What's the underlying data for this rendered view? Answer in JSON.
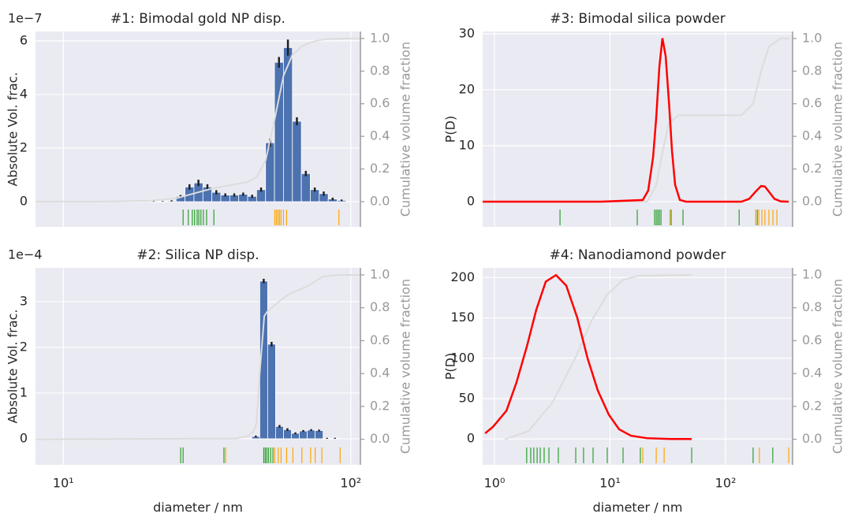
{
  "chart_data": [
    {
      "type": "histogram",
      "title": "#1: Bimodal gold NP disp.",
      "ylabel": "Absolute Vol. frac.",
      "y2label": "Cumulative volume fraction",
      "offset_text": "1e−7",
      "log_x": true,
      "xlim": [
        8,
        108
      ],
      "xticks": [
        10,
        100
      ],
      "ylim": [
        -0.94,
        6.35
      ],
      "yticks": [
        0,
        2,
        4,
        6
      ],
      "y2lim": [
        -0.155,
        1.043
      ],
      "y2ticks": [
        {
          "value": 0,
          "label": "0.0"
        },
        {
          "value": 0.2,
          "label": "0.2"
        },
        {
          "value": 0.4,
          "label": "0.4"
        },
        {
          "value": 0.6,
          "label": "0.6"
        },
        {
          "value": 0.8,
          "label": "0.8"
        },
        {
          "value": 1,
          "label": "1.0"
        }
      ],
      "grid": true,
      "color": "#4c72b0",
      "bins": [
        12.94,
        13.9,
        14.94,
        16.05,
        17.24,
        18.52,
        19.9,
        21.38,
        22.96,
        24.67,
        26.5,
        28.47,
        30.59,
        32.86,
        35.3,
        37.93,
        40.75,
        43.77,
        47.02,
        50.52,
        54.27,
        58.3,
        62.64,
        67.3,
        72.29,
        77.67,
        83.44,
        89.63,
        96.31
      ],
      "values": [
        0.01,
        0.02,
        0.01,
        0.01,
        0.02,
        0.01,
        0.01,
        0.02,
        0.03,
        0.2,
        0.55,
        0.7,
        0.55,
        0.35,
        0.25,
        0.25,
        0.28,
        0.2,
        0.45,
        2.2,
        5.2,
        5.75,
        3.0,
        1.05,
        0.45,
        0.3,
        0.1,
        0.05
      ],
      "errors": [
        0.01,
        0.01,
        0.01,
        0.01,
        0.01,
        0.01,
        0.01,
        0.01,
        0.02,
        0.05,
        0.1,
        0.12,
        0.1,
        0.08,
        0.06,
        0.06,
        0.06,
        0.06,
        0.08,
        0.15,
        0.2,
        0.3,
        0.15,
        0.1,
        0.08,
        0.08,
        0.05,
        0.03
      ],
      "series": [
        {
          "color": "#dcdcdc",
          "axis": "y2",
          "x": [
            8,
            12.94,
            19.9,
            24.67,
            28.47,
            32.86,
            37.93,
            43.77,
            47.02,
            50.52,
            54.27,
            58.3,
            62.64,
            67.3,
            72.29,
            77.67,
            83.44,
            96.31,
            108
          ],
          "values": [
            0,
            0,
            0.005,
            0.02,
            0.05,
            0.08,
            0.1,
            0.12,
            0.15,
            0.25,
            0.5,
            0.77,
            0.9,
            0.95,
            0.975,
            0.99,
            0.997,
            1.0,
            1.0
          ]
        }
      ],
      "rug": [
        {
          "color": "#2ca02c",
          "x": [
            26.1,
            27.2,
            28.1,
            28.6,
            29.2,
            29.6,
            30.1,
            30.7,
            31.5,
            33.4
          ]
        },
        {
          "color": "#ffa500",
          "x": [
            54.4,
            55.1,
            55.8,
            56.5,
            57.2,
            58.3,
            59.8,
            90.9
          ]
        }
      ]
    },
    {
      "type": "histogram",
      "title": "#2: Silica NP disp.",
      "ylabel": "Absolute Vol. frac.",
      "y2label": "Cumulative volume fraction",
      "xlabel": "diameter / nm",
      "offset_text": "1e−4",
      "log_x": true,
      "xlim": [
        8,
        108
      ],
      "xticks": [
        {
          "value": 10,
          "label": "10¹"
        },
        {
          "value": 100,
          "label": "10²"
        }
      ],
      "ylim": [
        -0.57,
        3.74
      ],
      "yticks": [
        0,
        1,
        2,
        3
      ],
      "y2lim": [
        -0.155,
        1.043
      ],
      "y2ticks": [
        {
          "value": 0,
          "label": "0.0"
        },
        {
          "value": 0.2,
          "label": "0.2"
        },
        {
          "value": 0.4,
          "label": "0.4"
        },
        {
          "value": 0.6,
          "label": "0.6"
        },
        {
          "value": 0.8,
          "label": "0.8"
        },
        {
          "value": 1,
          "label": "1.0"
        }
      ],
      "grid": true,
      "color": "#4c72b0",
      "bins": [
        45.25,
        48.24,
        51.37,
        54.73,
        58.32,
        62.14,
        66.21,
        70.54,
        75.16,
        80.09,
        85.33,
        90.92
      ],
      "values": [
        0.05,
        3.45,
        2.07,
        0.27,
        0.2,
        0.12,
        0.17,
        0.19,
        0.18,
        0.01,
        0.01
      ],
      "errors": [
        0.02,
        0.05,
        0.05,
        0.03,
        0.03,
        0.02,
        0.02,
        0.02,
        0.02,
        0.01,
        0.01
      ],
      "series": [
        {
          "color": "#dcdcdc",
          "axis": "y2",
          "x": [
            8,
            40,
            44,
            46,
            47,
            48.2,
            50,
            51.4,
            54.7,
            58.3,
            62.1,
            66.2,
            70.5,
            75.2,
            80.1,
            90.9,
            108
          ],
          "values": [
            0,
            0.005,
            0.02,
            0.05,
            0.1,
            0.4,
            0.75,
            0.78,
            0.82,
            0.86,
            0.89,
            0.91,
            0.93,
            0.96,
            0.99,
            1.0,
            1.0
          ]
        }
      ],
      "rug": [
        {
          "color": "#2ca02c",
          "x": [
            25.6,
            26.1,
            36.2,
            49.8,
            50.4,
            51.0,
            51.7,
            52.6,
            53.6
          ]
        },
        {
          "color": "#ffa500",
          "x": [
            36.7,
            54.4,
            55.9,
            57.2,
            59.8,
            62.9,
            67.6,
            72.5,
            75.2,
            79.3,
            91.8
          ]
        }
      ]
    },
    {
      "type": "line",
      "title": "#3: Bimodal silica powder",
      "ylabel": "P(D)",
      "y2label": "Cumulative volume fraction",
      "log_x": true,
      "xlim": [
        0.79,
        380
      ],
      "xticks": [
        1,
        10,
        100
      ],
      "ylim": [
        -4.5,
        30.4
      ],
      "yticks": [
        0,
        10,
        20,
        30
      ],
      "y2lim": [
        -0.155,
        1.043
      ],
      "y2ticks": [
        {
          "value": 0,
          "label": "0.0"
        },
        {
          "value": 0.2,
          "label": "0.2"
        },
        {
          "value": 0.4,
          "label": "0.4"
        },
        {
          "value": 0.6,
          "label": "0.6"
        },
        {
          "value": 0.8,
          "label": "0.8"
        },
        {
          "value": 1,
          "label": "1.0"
        }
      ],
      "grid": true,
      "series": [
        {
          "color": "#dcdcdc",
          "axis": "y2",
          "x": [
            0.79,
            21,
            25.1,
            28.4,
            32.3,
            39,
            137,
            173,
            203,
            237,
            300,
            352
          ],
          "values": [
            0,
            0,
            0.1,
            0.3,
            0.48,
            0.53,
            0.53,
            0.6,
            0.8,
            0.95,
            1.0,
            1.0
          ]
        },
        {
          "color": "#ff0000",
          "x": [
            0.79,
            8.09,
            19.2,
            21.4,
            23.6,
            25.1,
            26.7,
            28.4,
            30.3,
            32.3,
            34.4,
            36.6,
            40.2,
            45.6,
            137,
            160,
            182,
            203,
            219,
            241,
            265,
            300,
            352
          ],
          "values": [
            0,
            0,
            0.3,
            2,
            8,
            15,
            24,
            29.2,
            26,
            18,
            9,
            3,
            0.3,
            0,
            0,
            0.5,
            1.8,
            2.8,
            2.7,
            1.6,
            0.5,
            0.05,
            0
          ]
        }
      ],
      "rug": [
        {
          "color": "#2ca02c",
          "x": [
            3.69,
            17.2,
            24.3,
            25.1,
            25.9,
            26.7,
            27.6,
            33.8,
            42.8,
            131,
            188
          ]
        },
        {
          "color": "#ffa500",
          "x": [
            33.0,
            182,
            194,
            206,
            219,
            237,
            257,
            278
          ]
        }
      ]
    },
    {
      "type": "line",
      "title": "#4: Nanodiamond powder",
      "ylabel": "P(D)",
      "y2label": "Cumulative volume fraction",
      "xlabel": "diameter / nm",
      "log_x": true,
      "xlim": [
        0.79,
        380
      ],
      "xticks": [
        {
          "value": 1,
          "label": "10⁰"
        },
        {
          "value": 10,
          "label": "10¹"
        },
        {
          "value": 100,
          "label": "10²"
        }
      ],
      "ylim": [
        -32,
        212
      ],
      "yticks": [
        0,
        50,
        100,
        150,
        200
      ],
      "y2lim": [
        -0.155,
        1.043
      ],
      "y2ticks": [
        {
          "value": 0,
          "label": "0.0"
        },
        {
          "value": 0.2,
          "label": "0.2"
        },
        {
          "value": 0.4,
          "label": "0.4"
        },
        {
          "value": 0.6,
          "label": "0.6"
        },
        {
          "value": 0.8,
          "label": "0.8"
        },
        {
          "value": 1,
          "label": "1.0"
        }
      ],
      "grid": true,
      "series": [
        {
          "color": "#dcdcdc",
          "axis": "y2",
          "x": [
            1.23,
            1.97,
            3.15,
            5.05,
            6.91,
            9.46,
            12.96,
            17.75,
            50.9
          ],
          "values": [
            0,
            0.05,
            0.22,
            0.5,
            0.72,
            0.88,
            0.97,
            0.995,
            1.0
          ]
        },
        {
          "color": "#ff0000",
          "x": [
            0.83,
            0.97,
            1.27,
            1.55,
            1.91,
            2.3,
            2.78,
            3.41,
            4.18,
            5.21,
            6.39,
            7.84,
            9.77,
            11.98,
            15.17,
            20.8,
            33.3,
            50.9
          ],
          "values": [
            7,
            15,
            35,
            70,
            115,
            160,
            195,
            203,
            190,
            150,
            100,
            60,
            30,
            12,
            4,
            1,
            0,
            0
          ]
        }
      ],
      "rug": [
        {
          "color": "#2ca02c",
          "x": [
            1.9,
            2.06,
            2.19,
            2.34,
            2.49,
            2.69,
            2.96,
            3.57,
            5.05,
            5.9,
            7.13,
            9.46,
            12.96,
            18.3,
            50.9,
            173,
            256
          ]
        },
        {
          "color": "#ffa500",
          "x": [
            19.2,
            25.1,
            29.4,
            196,
            352
          ]
        }
      ]
    }
  ]
}
